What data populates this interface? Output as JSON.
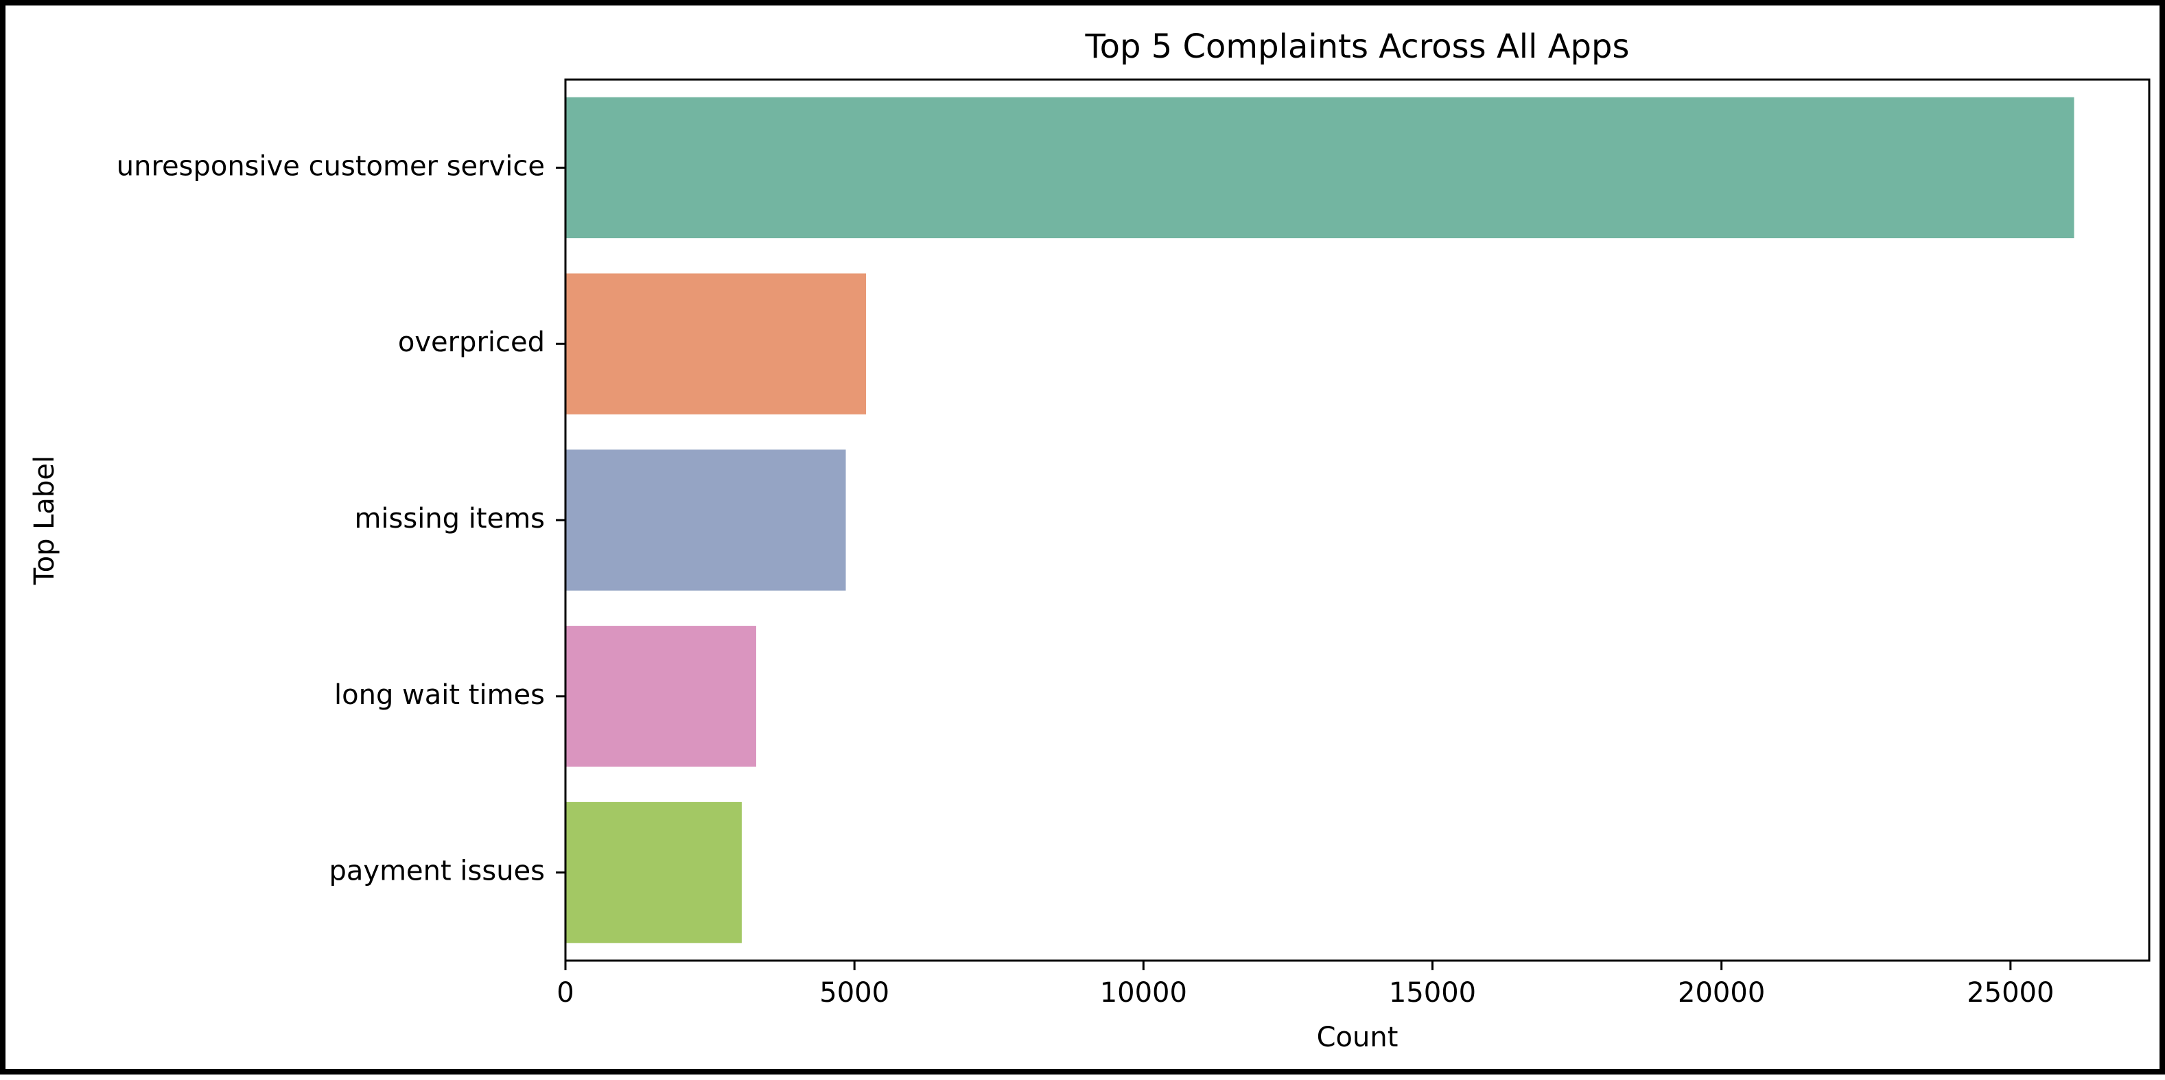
{
  "chart_data": {
    "type": "bar",
    "orientation": "horizontal",
    "title": "Top 5 Complaints Across All Apps",
    "xlabel": "Count",
    "ylabel": "Top Label",
    "categories": [
      "unresponsive customer service",
      "overpriced",
      "missing items",
      "long wait times",
      "payment issues"
    ],
    "values": [
      26100,
      5200,
      4850,
      3300,
      3050
    ],
    "colors": [
      "#73b5a1",
      "#e89874",
      "#95a4c4",
      "#da95bf",
      "#a3c864"
    ],
    "xlim": [
      0,
      27400
    ],
    "xticks": [
      0,
      5000,
      10000,
      15000,
      20000,
      25000
    ],
    "xtick_labels": [
      "0",
      "5000",
      "10000",
      "15000",
      "20000",
      "25000"
    ],
    "grid": false,
    "legend": "none"
  }
}
